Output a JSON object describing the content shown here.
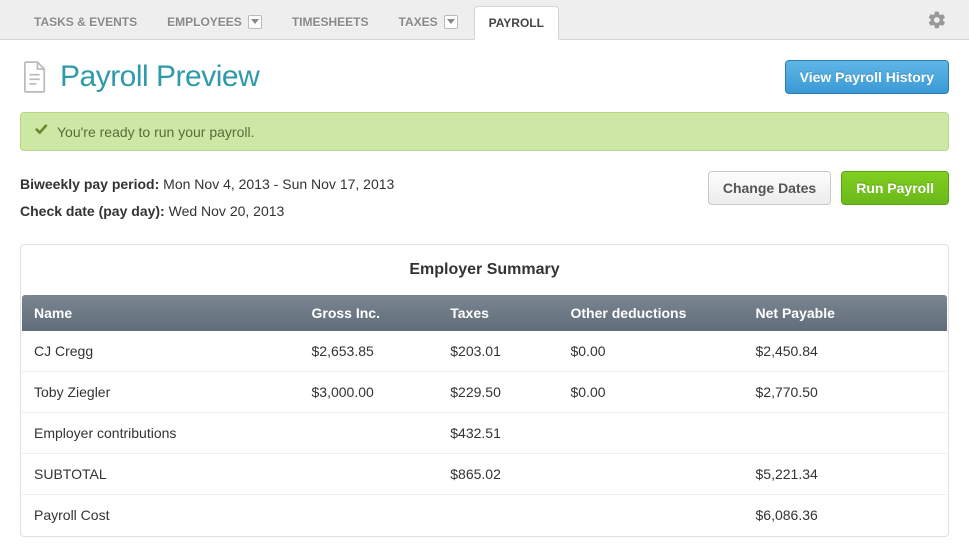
{
  "tabs": {
    "items": [
      {
        "label": "TASKS & EVENTS",
        "hasDropdown": false
      },
      {
        "label": "EMPLOYEES",
        "hasDropdown": true
      },
      {
        "label": "TIMESHEETS",
        "hasDropdown": false
      },
      {
        "label": "TAXES",
        "hasDropdown": true
      },
      {
        "label": "PAYROLL",
        "hasDropdown": false
      }
    ],
    "active_index": 4
  },
  "page": {
    "title": "Payroll Preview",
    "history_button": "View Payroll History"
  },
  "alert": {
    "text": "You're ready to run your payroll."
  },
  "period": {
    "pay_period_label": "Biweekly pay period:",
    "pay_period_value": "Mon Nov 4, 2013 - Sun Nov 17, 2013",
    "check_date_label": "Check date (pay day):",
    "check_date_value": "Wed Nov 20, 2013",
    "change_dates_button": "Change Dates",
    "run_payroll_button": "Run Payroll"
  },
  "summary": {
    "title": "Employer Summary",
    "columns": [
      "Name",
      "Gross Inc.",
      "Taxes",
      "Other deductions",
      "Net Payable"
    ],
    "rows": [
      {
        "name": "CJ Cregg",
        "gross": "$2,653.85",
        "taxes": "$203.01",
        "other": "$0.00",
        "net": "$2,450.84"
      },
      {
        "name": "Toby Ziegler",
        "gross": "$3,000.00",
        "taxes": "$229.50",
        "other": "$0.00",
        "net": "$2,770.50"
      },
      {
        "name": "Employer contributions",
        "gross": "",
        "taxes": "$432.51",
        "other": "",
        "net": ""
      },
      {
        "name": "SUBTOTAL",
        "gross": "",
        "taxes": "$865.02",
        "other": "",
        "net": "$5,221.34"
      },
      {
        "name": "Payroll Cost",
        "gross": "",
        "taxes": "",
        "other": "",
        "net": "$6,086.36"
      }
    ]
  },
  "colors": {
    "accent_teal": "#2f9aa9",
    "alert_bg": "#cde8a5",
    "alert_border": "#b7d786",
    "btn_blue_top": "#5fb6e6",
    "btn_blue_bottom": "#3a9ad6",
    "btn_green_top": "#80ce1f",
    "btn_green_bottom": "#6ab91a",
    "table_header_top": "#7a8591",
    "table_header_bottom": "#616d7a",
    "tab_inactive_bg": "#eeeeee"
  }
}
